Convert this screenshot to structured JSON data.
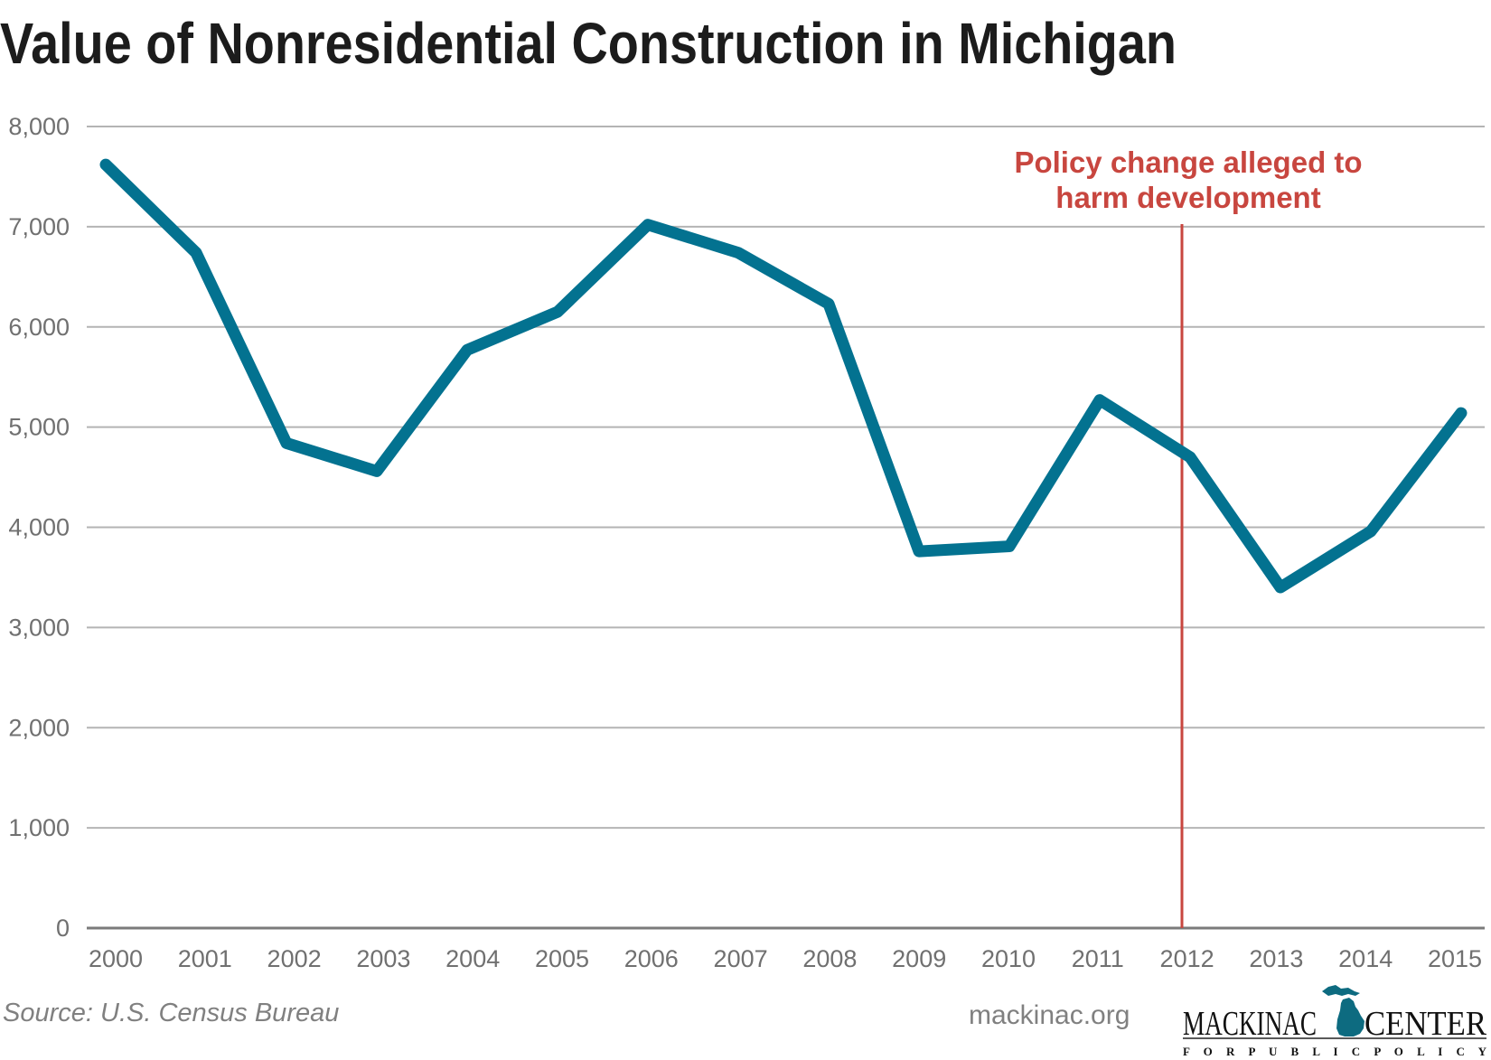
{
  "chart_data": {
    "type": "line",
    "title": "Value of Nonresidential Construction in Michigan",
    "xlabel": "",
    "ylabel": "",
    "categories": [
      "2000",
      "2001",
      "2002",
      "2003",
      "2004",
      "2005",
      "2006",
      "2007",
      "2008",
      "2009",
      "2010",
      "2011",
      "2012",
      "2013",
      "2014",
      "2015"
    ],
    "series": [
      {
        "name": "Value of Nonresidential Construction",
        "color": "#037290",
        "values": [
          7620,
          6740,
          4840,
          4560,
          5770,
          6150,
          7020,
          6740,
          6230,
          3760,
          3810,
          5270,
          4700,
          3400,
          3960,
          5140
        ]
      }
    ],
    "ylim": [
      0,
      8000
    ],
    "yticks": [
      0,
      1000,
      2000,
      3000,
      4000,
      5000,
      6000,
      7000,
      8000
    ],
    "ytick_labels": [
      "0",
      "1,000",
      "2,000",
      "3,000",
      "4,000",
      "5,000",
      "6,000",
      "7,000",
      "8,000"
    ],
    "grid": true,
    "legend": "none",
    "annotations": [
      {
        "type": "vertical-line",
        "x": "2012",
        "color": "#c8463f",
        "text_lines": [
          "Policy change alleged to",
          "harm development"
        ]
      }
    ]
  },
  "footer": {
    "source": "Source: U.S. Census Bureau",
    "site": "mackinac.org",
    "logo_left": "MACKINAC",
    "logo_right": "CENTER",
    "logo_sub": "F O R   P U B L I C   P O L I C Y",
    "logo_color": "#0d6b80"
  }
}
